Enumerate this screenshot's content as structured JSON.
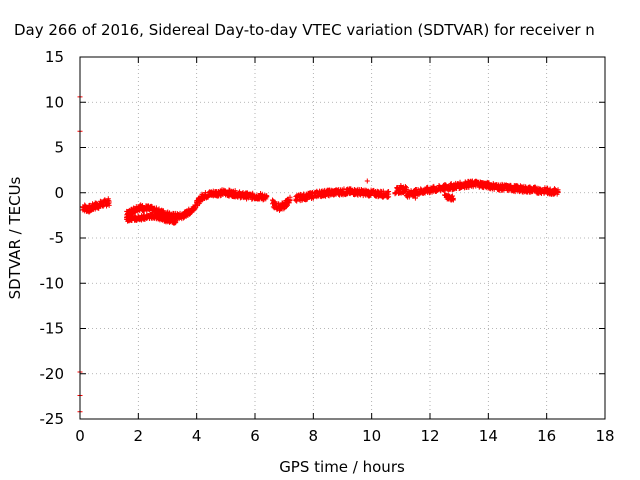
{
  "chart_data": {
    "type": "scatter",
    "title": "Day 266 of 2016, Sidereal Day-to-day VTEC variation (SDTVAR) for receiver n",
    "xlabel": "GPS time / hours",
    "ylabel": "SDTVAR / TECUs",
    "xlim": [
      0,
      18
    ],
    "ylim": [
      -25,
      15
    ],
    "xticks": [
      0,
      2,
      4,
      6,
      8,
      10,
      12,
      14,
      16,
      18
    ],
    "yticks": [
      -25,
      -20,
      -15,
      -10,
      -5,
      0,
      5,
      10,
      15
    ],
    "grid": true,
    "legend": "none",
    "marker_color": "#ff0000",
    "series": [
      {
        "band_segments": [
          {
            "x": [
              0.1,
              0.3,
              0.5,
              0.7,
              0.9,
              1.0
            ],
            "y": [
              -1.6,
              -1.8,
              -1.5,
              -1.3,
              -1.1,
              -1.0
            ],
            "spread": 0.8
          },
          {
            "x": [
              1.6,
              1.8,
              2.0,
              2.4,
              2.8,
              3.2,
              3.5,
              3.8,
              4.0,
              4.2,
              4.5,
              4.8,
              5.0,
              5.3,
              5.6,
              5.9,
              6.2,
              6.4
            ],
            "y": [
              -2.4,
              -2.0,
              -1.6,
              -1.8,
              -2.2,
              -2.6,
              -2.6,
              -2.0,
              -1.2,
              -0.4,
              -0.1,
              0.0,
              0.0,
              -0.1,
              -0.3,
              -0.4,
              -0.4,
              -0.6
            ],
            "spread": 0.7
          },
          {
            "x": [
              1.6,
              2.0,
              2.5,
              3.0,
              3.3
            ],
            "y": [
              -2.9,
              -2.8,
              -2.6,
              -3.0,
              -3.2
            ],
            "spread": 0.5
          },
          {
            "x": [
              6.6,
              6.8,
              7.0,
              7.2
            ],
            "y": [
              -1.2,
              -1.6,
              -1.4,
              -0.8
            ],
            "spread": 0.8
          },
          {
            "x": [
              7.4,
              7.8,
              8.2,
              8.6,
              9.0,
              9.4,
              9.8,
              10.2,
              10.6
            ],
            "y": [
              -0.6,
              -0.4,
              -0.1,
              0.0,
              0.1,
              0.1,
              0.0,
              -0.1,
              -0.2
            ],
            "spread": 0.7
          },
          {
            "x": [
              10.8,
              11.0,
              11.2
            ],
            "y": [
              0.2,
              0.3,
              0.4
            ],
            "spread": 0.7
          },
          {
            "x": [
              11.2,
              11.6,
              12.0,
              12.4,
              12.8,
              13.2,
              13.6,
              14.0,
              14.4,
              14.8,
              15.2,
              15.6,
              16.0,
              16.4
            ],
            "y": [
              -0.2,
              0.1,
              0.3,
              0.5,
              0.7,
              0.9,
              1.0,
              0.8,
              0.6,
              0.5,
              0.4,
              0.3,
              0.2,
              0.1
            ],
            "spread": 0.7
          },
          {
            "x": [
              12.5,
              12.8
            ],
            "y": [
              -0.4,
              -0.6
            ],
            "spread": 0.5
          }
        ],
        "isolated_points": [
          [
            0.0,
            10.6
          ],
          [
            0.0,
            6.8
          ],
          [
            0.0,
            -19.8
          ],
          [
            0.0,
            -22.4
          ],
          [
            0.0,
            -24.2
          ],
          [
            9.85,
            1.3
          ],
          [
            11.0,
            0.8
          ],
          [
            11.5,
            -0.6
          ]
        ]
      }
    ]
  }
}
